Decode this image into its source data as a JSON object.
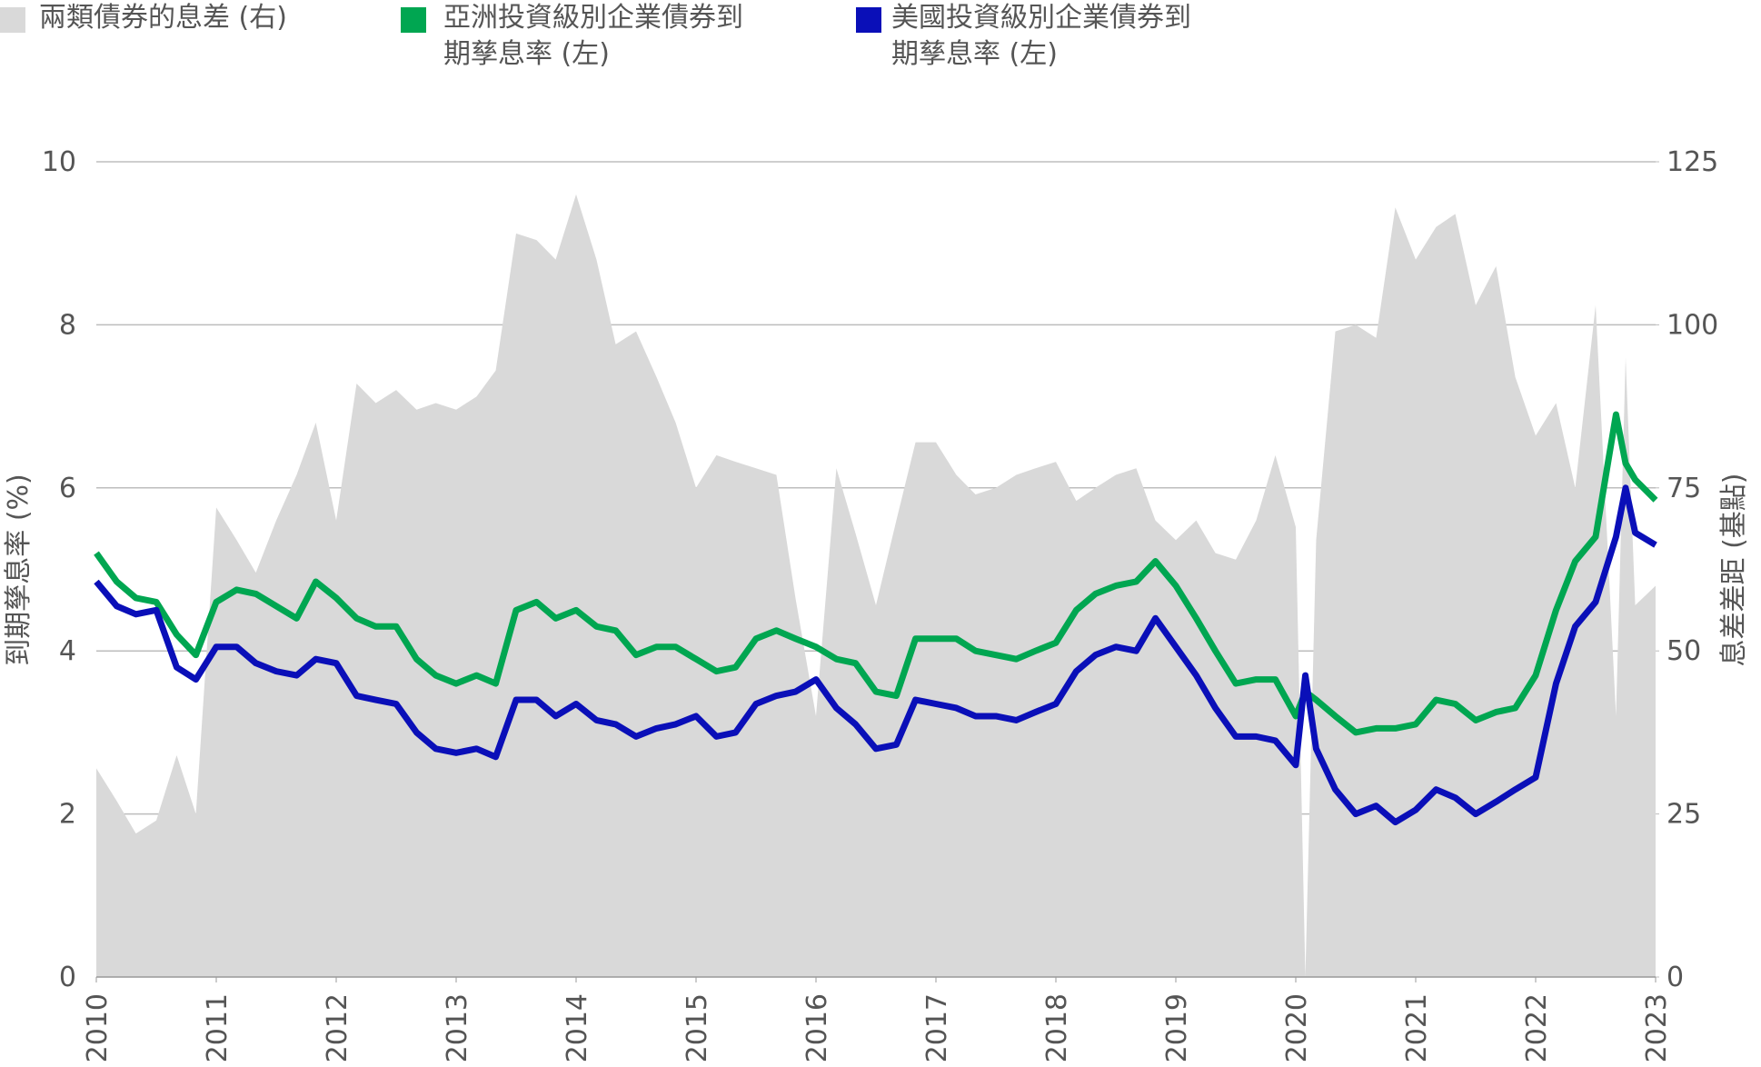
{
  "chart_data": {
    "type": "line",
    "x": [
      2010,
      2010.17,
      2010.33,
      2010.5,
      2010.67,
      2010.83,
      2011,
      2011.17,
      2011.33,
      2011.5,
      2011.67,
      2011.83,
      2012,
      2012.17,
      2012.33,
      2012.5,
      2012.67,
      2012.83,
      2013,
      2013.17,
      2013.33,
      2013.5,
      2013.67,
      2013.83,
      2014,
      2014.17,
      2014.33,
      2014.5,
      2014.67,
      2014.83,
      2015,
      2015.17,
      2015.33,
      2015.5,
      2015.67,
      2015.83,
      2016,
      2016.17,
      2016.33,
      2016.5,
      2016.67,
      2016.83,
      2017,
      2017.17,
      2017.33,
      2017.5,
      2017.67,
      2017.83,
      2018,
      2018.17,
      2018.33,
      2018.5,
      2018.67,
      2018.83,
      2019,
      2019.17,
      2019.33,
      2019.5,
      2019.67,
      2019.83,
      2020,
      2020.08,
      2020.17,
      2020.33,
      2020.5,
      2020.67,
      2020.83,
      2021,
      2021.17,
      2021.33,
      2021.5,
      2021.67,
      2021.83,
      2022,
      2022.17,
      2022.33,
      2022.5,
      2022.67,
      2022.75,
      2022.83,
      2023
    ],
    "series": [
      {
        "name": "兩類債券的息差 (右)",
        "color": "#d9d9d9",
        "axis": "y2",
        "kind": "area",
        "values": [
          32,
          27,
          22,
          24,
          34,
          25,
          72,
          67,
          62,
          70,
          77,
          85,
          70,
          91,
          88,
          90,
          87,
          88,
          87,
          89,
          93,
          114,
          113,
          110,
          120,
          110,
          97,
          99,
          92,
          85,
          75,
          80,
          79,
          78,
          77,
          58,
          40,
          78,
          68,
          57,
          70,
          82,
          82,
          77,
          74,
          75,
          77,
          78,
          79,
          73,
          75,
          77,
          78,
          70,
          67,
          70,
          65,
          64,
          70,
          80,
          69,
          0,
          67,
          99,
          100,
          98,
          118,
          110,
          115,
          117,
          103,
          109,
          92,
          83,
          88,
          75,
          103,
          40,
          95,
          57,
          60
        ]
      },
      {
        "name": "亞洲投資級別企業債券到期孳息率 (左)",
        "color": "#00a651",
        "values": [
          5.2,
          4.85,
          4.65,
          4.6,
          4.2,
          3.95,
          4.6,
          4.75,
          4.7,
          4.55,
          4.4,
          4.85,
          4.65,
          4.4,
          4.3,
          4.3,
          3.9,
          3.7,
          3.6,
          3.7,
          3.6,
          4.5,
          4.6,
          4.4,
          4.5,
          4.3,
          4.25,
          3.95,
          4.05,
          4.05,
          3.9,
          3.75,
          3.8,
          4.15,
          4.25,
          4.15,
          4.05,
          3.9,
          3.85,
          3.5,
          3.45,
          4.15,
          4.15,
          4.15,
          4.0,
          3.95,
          3.9,
          4.0,
          4.1,
          4.5,
          4.7,
          4.8,
          4.85,
          5.1,
          4.8,
          4.4,
          4.0,
          3.6,
          3.65,
          3.65,
          3.2,
          3.5,
          3.4,
          3.2,
          3.0,
          3.05,
          3.05,
          3.1,
          3.4,
          3.35,
          3.15,
          3.25,
          3.3,
          3.7,
          4.5,
          5.1,
          5.4,
          6.9,
          6.3,
          6.1,
          5.85
        ]
      },
      {
        "name": "美國投資級別企業債券到期孳息率 (左)",
        "color": "#0a0fb8",
        "values": [
          4.85,
          4.55,
          4.45,
          4.5,
          3.8,
          3.65,
          4.05,
          4.05,
          3.85,
          3.75,
          3.7,
          3.9,
          3.85,
          3.45,
          3.4,
          3.35,
          3.0,
          2.8,
          2.75,
          2.8,
          2.7,
          3.4,
          3.4,
          3.2,
          3.35,
          3.15,
          3.1,
          2.95,
          3.05,
          3.1,
          3.2,
          2.95,
          3.0,
          3.35,
          3.45,
          3.5,
          3.65,
          3.3,
          3.1,
          2.8,
          2.85,
          3.4,
          3.35,
          3.3,
          3.2,
          3.2,
          3.15,
          3.25,
          3.35,
          3.75,
          3.95,
          4.05,
          4.0,
          4.4,
          4.05,
          3.7,
          3.3,
          2.95,
          2.95,
          2.9,
          2.6,
          3.7,
          2.8,
          2.3,
          2.0,
          2.1,
          1.9,
          2.05,
          2.3,
          2.2,
          2.0,
          2.15,
          2.3,
          2.45,
          3.6,
          4.3,
          4.6,
          5.4,
          6.0,
          5.45,
          5.3
        ]
      }
    ],
    "y_label": "到期孳息率 (%)",
    "y2_label": "息差差距 (基點)",
    "xlim": [
      2010,
      2023
    ],
    "xticks": [
      2010,
      2011,
      2012,
      2013,
      2014,
      2015,
      2016,
      2017,
      2018,
      2019,
      2020,
      2021,
      2022,
      2023
    ],
    "ylim": [
      0,
      10
    ],
    "yticks": [
      0,
      2,
      4,
      6,
      8,
      10
    ],
    "y2lim": [
      0,
      125
    ],
    "y2ticks": [
      0,
      25,
      50,
      75,
      100,
      125
    ],
    "grid": true
  }
}
